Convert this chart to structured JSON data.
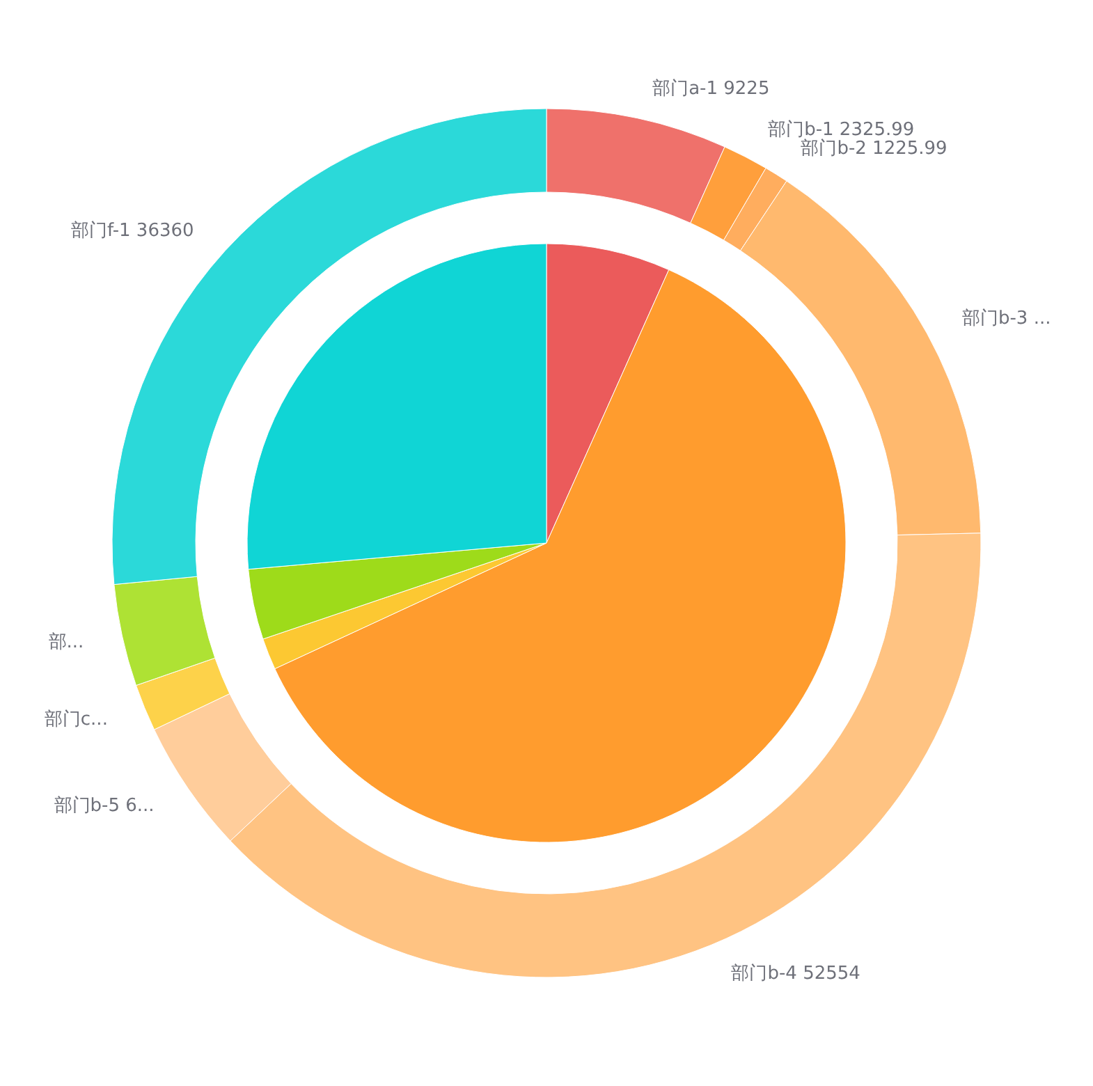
{
  "chart_data": [
    {
      "type": "pie",
      "categories": [
        null,
        null,
        null,
        null,
        null
      ],
      "values": [
        6.7,
        61.4,
        1.7,
        3.8,
        26.4
      ],
      "colors": [
        "#eb5b5b",
        "#ff9c2e",
        "#fcc832",
        "#9edb1a",
        "#10d5d5"
      ]
    },
    {
      "type": "donut",
      "categories": [
        "部门a-1 9225",
        "部门b-1 2325.99",
        "部门b-2 1225.99",
        "部门b-3 ...",
        "部门b-4 52554",
        "部门b-5 6...",
        "部门c...",
        "部...",
        "部门f-1 36360"
      ],
      "values": [
        9225,
        2325.99,
        1225.99,
        21000,
        52554,
        6800,
        2400,
        5200,
        36360
      ],
      "colors": [
        "#ef716b",
        "#ff9f3c",
        "#ffad5e",
        "#ffb96e",
        "#ffc382",
        "#ffcd9b",
        "#fdd24a",
        "#aee234",
        "#2bd9d9"
      ]
    }
  ]
}
